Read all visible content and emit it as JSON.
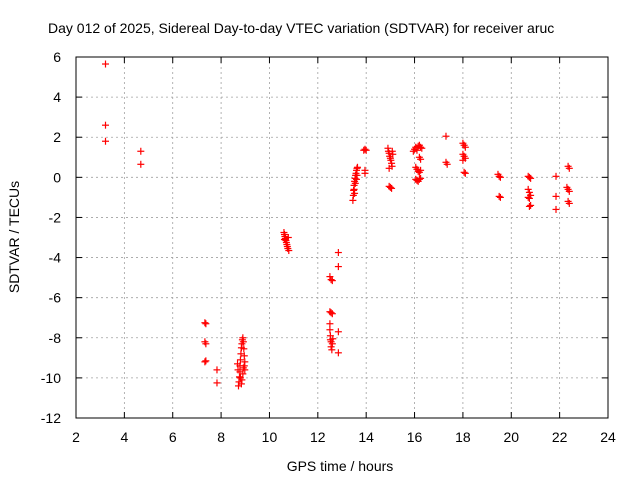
{
  "colors": {
    "series": "#ff0000",
    "grid": "#a0a0a0",
    "axis": "#000000"
  },
  "chart_data": {
    "type": "scatter",
    "title": "Day 012 of 2025, Sidereal Day-to-day VTEC variation (SDTVAR) for receiver aruc",
    "xlabel": "GPS time / hours",
    "ylabel": "SDTVAR / TECUs",
    "xlim": [
      2,
      24
    ],
    "ylim": [
      -12,
      6
    ],
    "grid": true,
    "marker": "plus",
    "xticks": [
      "2",
      "4",
      "6",
      "8",
      "10",
      "12",
      "14",
      "16",
      "18",
      "20",
      "22",
      "24"
    ],
    "yticks": [
      "6",
      "4",
      "2",
      "0",
      "-2",
      "-4",
      "-6",
      "-8",
      "-10",
      "-12"
    ],
    "series": [
      {
        "name": "SDTVAR",
        "points": [
          [
            3.22,
            5.65
          ],
          [
            3.22,
            2.6
          ],
          [
            3.22,
            1.8
          ],
          [
            4.68,
            1.3
          ],
          [
            4.68,
            0.65
          ],
          [
            7.33,
            -7.25
          ],
          [
            7.37,
            -7.3
          ],
          [
            7.33,
            -8.2
          ],
          [
            7.37,
            -8.3
          ],
          [
            7.33,
            -9.2
          ],
          [
            7.37,
            -9.15
          ],
          [
            7.83,
            -9.6
          ],
          [
            7.83,
            -10.25
          ],
          [
            8.72,
            -10.4
          ],
          [
            8.74,
            -10.2
          ],
          [
            8.76,
            -9.95
          ],
          [
            8.78,
            -9.7
          ],
          [
            8.78,
            -9.4
          ],
          [
            8.8,
            -9.1
          ],
          [
            8.82,
            -8.8
          ],
          [
            8.84,
            -8.5
          ],
          [
            8.86,
            -8.3
          ],
          [
            8.88,
            -8.1
          ],
          [
            8.9,
            -8.0
          ],
          [
            8.92,
            -8.2
          ],
          [
            8.94,
            -8.55
          ],
          [
            8.96,
            -8.9
          ],
          [
            8.98,
            -9.2
          ],
          [
            8.92,
            -9.5
          ],
          [
            8.9,
            -9.8
          ],
          [
            8.86,
            -10.1
          ],
          [
            8.84,
            -10.3
          ],
          [
            8.8,
            -10.0
          ],
          [
            8.98,
            -9.6
          ],
          [
            8.96,
            -9.4
          ],
          [
            8.7,
            -9.6
          ],
          [
            8.68,
            -9.3
          ],
          [
            10.6,
            -2.75
          ],
          [
            10.62,
            -2.85
          ],
          [
            10.64,
            -2.95
          ],
          [
            10.66,
            -3.05
          ],
          [
            10.68,
            -3.15
          ],
          [
            10.7,
            -3.25
          ],
          [
            10.72,
            -3.35
          ],
          [
            10.74,
            -3.45
          ],
          [
            10.76,
            -3.55
          ],
          [
            10.8,
            -3.65
          ],
          [
            10.62,
            -3.1
          ],
          [
            10.78,
            -3.0
          ],
          [
            12.5,
            -4.95
          ],
          [
            12.55,
            -5.1
          ],
          [
            12.6,
            -5.15
          ],
          [
            12.5,
            -6.7
          ],
          [
            12.55,
            -6.75
          ],
          [
            12.6,
            -6.8
          ],
          [
            12.5,
            -7.3
          ],
          [
            12.5,
            -7.6
          ],
          [
            12.52,
            -7.9
          ],
          [
            12.52,
            -8.1
          ],
          [
            12.55,
            -8.2
          ],
          [
            12.55,
            -8.45
          ],
          [
            12.58,
            -8.6
          ],
          [
            12.6,
            -8.3
          ],
          [
            12.62,
            -8.05
          ],
          [
            12.85,
            -3.75
          ],
          [
            12.85,
            -4.45
          ],
          [
            12.85,
            -7.7
          ],
          [
            12.85,
            -8.75
          ],
          [
            13.45,
            -1.15
          ],
          [
            13.47,
            -0.9
          ],
          [
            13.48,
            -0.65
          ],
          [
            13.5,
            -0.4
          ],
          [
            13.52,
            -0.2
          ],
          [
            13.54,
            -0.05
          ],
          [
            13.56,
            0.1
          ],
          [
            13.58,
            0.2
          ],
          [
            13.6,
            0.35
          ],
          [
            13.62,
            0.45
          ],
          [
            13.64,
            0.5
          ],
          [
            13.5,
            -0.6
          ],
          [
            13.52,
            -0.8
          ],
          [
            13.55,
            -0.3
          ],
          [
            13.6,
            -0.1
          ],
          [
            13.62,
            0.1
          ],
          [
            13.9,
            1.35
          ],
          [
            13.95,
            1.4
          ],
          [
            14.0,
            1.35
          ],
          [
            13.95,
            0.35
          ],
          [
            13.95,
            0.2
          ],
          [
            14.9,
            1.45
          ],
          [
            14.92,
            1.3
          ],
          [
            14.95,
            1.2
          ],
          [
            14.97,
            1.05
          ],
          [
            15.0,
            0.95
          ],
          [
            15.02,
            0.85
          ],
          [
            15.05,
            0.7
          ],
          [
            15.07,
            0.55
          ],
          [
            14.95,
            0.45
          ],
          [
            15.08,
            1.3
          ],
          [
            15.1,
            1.15
          ],
          [
            14.95,
            -0.45
          ],
          [
            15.0,
            -0.5
          ],
          [
            15.05,
            -0.55
          ],
          [
            15.95,
            1.3
          ],
          [
            16.0,
            1.4
          ],
          [
            16.05,
            1.5
          ],
          [
            16.1,
            1.35
          ],
          [
            16.15,
            1.55
          ],
          [
            16.2,
            1.6
          ],
          [
            16.25,
            1.5
          ],
          [
            16.3,
            1.45
          ],
          [
            16.05,
            0.5
          ],
          [
            16.1,
            0.4
          ],
          [
            16.15,
            0.3
          ],
          [
            16.2,
            0.25
          ],
          [
            16.25,
            0.35
          ],
          [
            16.05,
            -0.1
          ],
          [
            16.1,
            -0.15
          ],
          [
            16.15,
            -0.2
          ],
          [
            16.2,
            -0.1
          ],
          [
            16.25,
            -0.05
          ],
          [
            16.2,
            1.0
          ],
          [
            16.25,
            0.9
          ],
          [
            17.3,
            2.05
          ],
          [
            17.3,
            0.75
          ],
          [
            17.35,
            0.65
          ],
          [
            18.0,
            1.7
          ],
          [
            18.05,
            1.6
          ],
          [
            18.1,
            1.5
          ],
          [
            18.0,
            1.15
          ],
          [
            18.05,
            1.05
          ],
          [
            18.1,
            0.95
          ],
          [
            18.0,
            0.85
          ],
          [
            18.05,
            0.25
          ],
          [
            18.1,
            0.2
          ],
          [
            19.45,
            0.15
          ],
          [
            19.5,
            0.05
          ],
          [
            19.55,
            0.0
          ],
          [
            19.5,
            -0.95
          ],
          [
            19.55,
            -1.0
          ],
          [
            20.7,
            0.05
          ],
          [
            20.75,
            0.0
          ],
          [
            20.8,
            -0.05
          ],
          [
            20.7,
            -0.6
          ],
          [
            20.75,
            -0.75
          ],
          [
            20.8,
            -0.9
          ],
          [
            20.7,
            -1.0
          ],
          [
            20.75,
            -1.05
          ],
          [
            20.8,
            -1.4
          ],
          [
            20.75,
            -1.45
          ],
          [
            21.85,
            0.05
          ],
          [
            21.85,
            -0.95
          ],
          [
            21.85,
            -1.6
          ],
          [
            22.35,
            0.55
          ],
          [
            22.4,
            0.45
          ],
          [
            22.3,
            -0.5
          ],
          [
            22.35,
            -0.6
          ],
          [
            22.4,
            -0.7
          ],
          [
            22.35,
            -1.2
          ],
          [
            22.4,
            -1.3
          ]
        ]
      }
    ]
  }
}
